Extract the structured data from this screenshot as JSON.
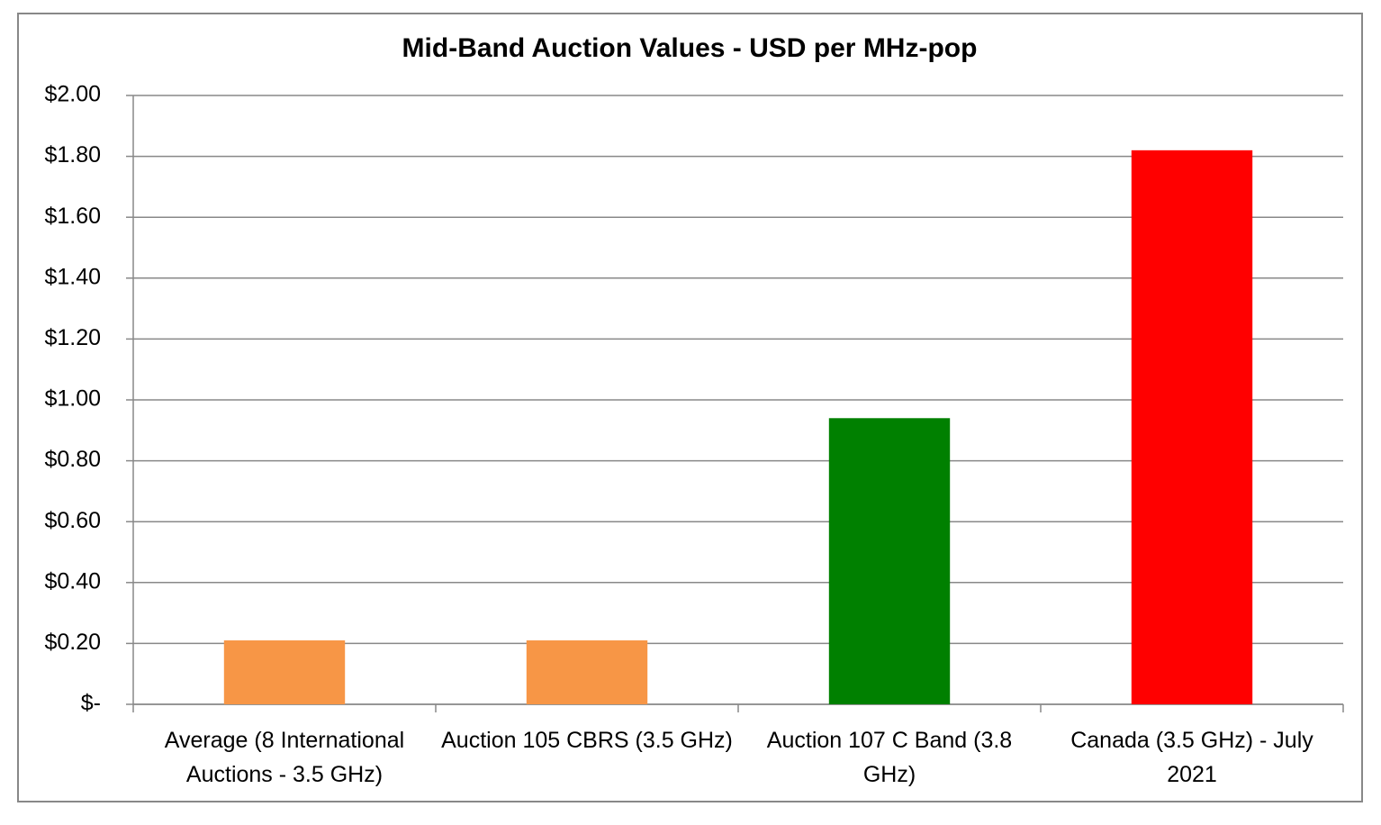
{
  "chart_data": {
    "type": "bar",
    "title": "Mid-Band Auction Values - USD per MHz-pop",
    "categories": [
      "Average (8 International Auctions - 3.5 GHz)",
      "Auction 105 CBRS (3.5 GHz)",
      "Auction 107 C Band (3.8 GHz)",
      "Canada (3.5 GHz) - July 2021"
    ],
    "values": [
      0.21,
      0.21,
      0.94,
      1.82
    ],
    "colors": [
      "#f79646",
      "#f79646",
      "#008000",
      "#ff0000"
    ],
    "ylim": [
      0,
      2
    ],
    "yticks": [
      {
        "value": 0,
        "label": "$-"
      },
      {
        "value": 0.2,
        "label": "$0.20"
      },
      {
        "value": 0.4,
        "label": "$0.40"
      },
      {
        "value": 0.6,
        "label": "$0.60"
      },
      {
        "value": 0.8,
        "label": "$0.80"
      },
      {
        "value": 1,
        "label": "$1.00"
      },
      {
        "value": 1.2,
        "label": "$1.20"
      },
      {
        "value": 1.4,
        "label": "$1.40"
      },
      {
        "value": 1.6,
        "label": "$1.60"
      },
      {
        "value": 1.8,
        "label": "$1.80"
      },
      {
        "value": 2,
        "label": "$2.00"
      }
    ],
    "grid": true
  }
}
